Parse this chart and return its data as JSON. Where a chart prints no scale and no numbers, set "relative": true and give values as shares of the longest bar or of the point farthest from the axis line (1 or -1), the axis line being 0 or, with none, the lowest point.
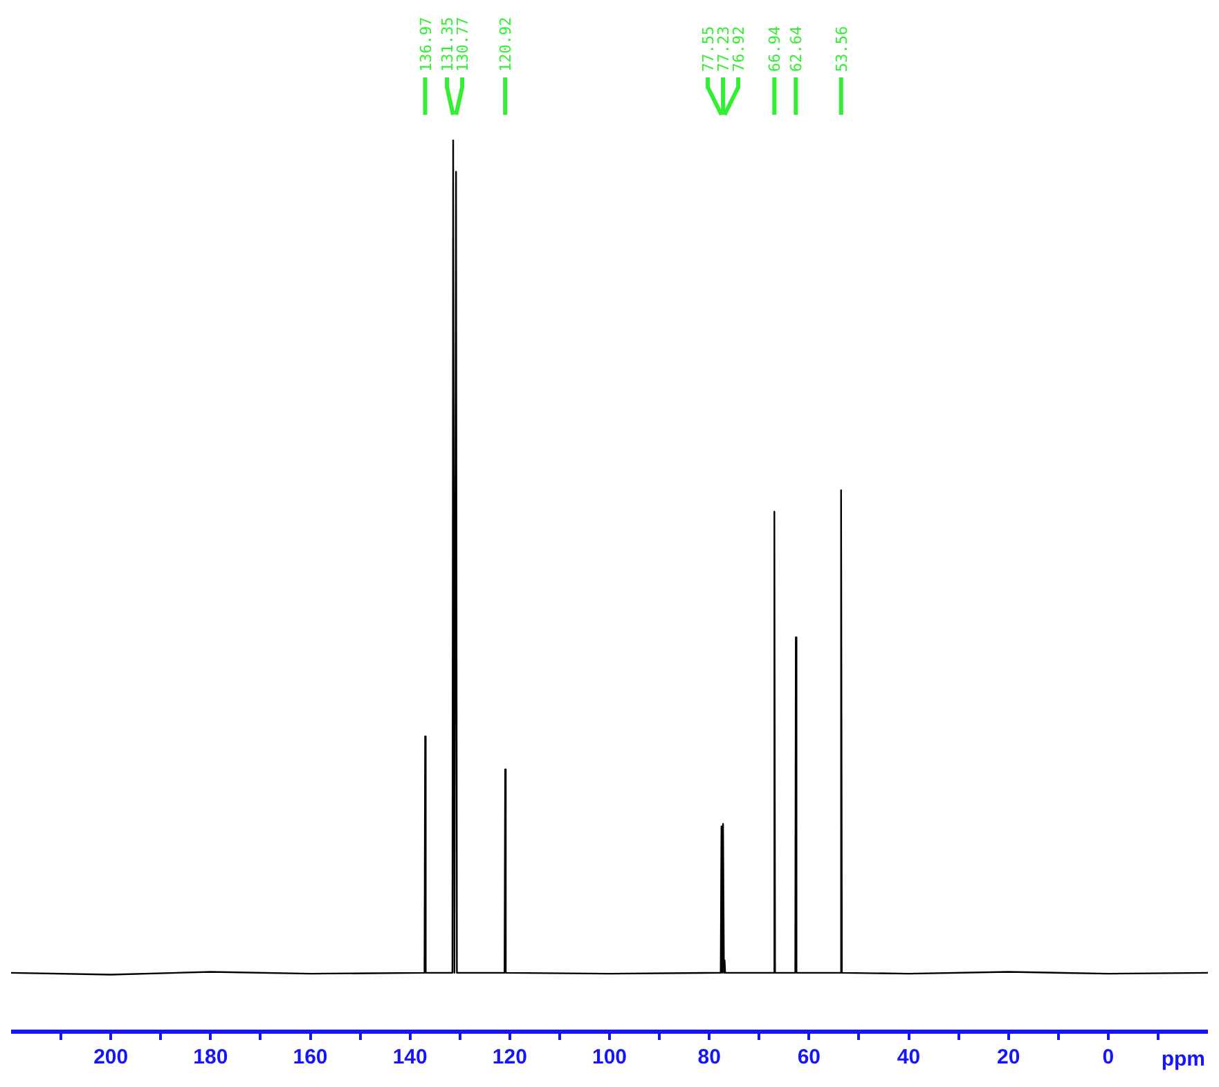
{
  "chart_data": {
    "type": "line",
    "relative": true,
    "xlabel": "ppm",
    "marker": "none",
    "line_style": "solid",
    "x": [
      220,
      200,
      180,
      160,
      137.1,
      136.97,
      136.85,
      131.5,
      131.35,
      131.1,
      130.77,
      130.6,
      121.05,
      120.92,
      120.8,
      100,
      77.7,
      77.55,
      77.4,
      77.23,
      77.05,
      76.92,
      76.8,
      67.05,
      66.94,
      66.8,
      62.75,
      62.64,
      62.5,
      53.7,
      53.56,
      53.4,
      40,
      20,
      0,
      -20
    ],
    "series": [
      {
        "color": "#000000",
        "values": [
          0.066,
          0.064,
          0.067,
          0.065,
          0.066,
          0.331,
          0.066,
          0.066,
          1,
          0.066,
          0.964,
          0.066,
          0.066,
          0.294,
          0.066,
          0.065,
          0.066,
          0.23,
          0.066,
          0.233,
          0.066,
          0.08,
          0.066,
          0.066,
          0.583,
          0.066,
          0.066,
          0.442,
          0.066,
          0.066,
          0.607,
          0.066,
          0.065,
          0.067,
          0.065,
          0.066
        ]
      }
    ],
    "xlim": [
      220,
      -20
    ],
    "xticks": [
      {
        "value": 210,
        "label": null
      },
      200,
      {
        "value": 190,
        "label": null
      },
      180,
      {
        "value": 170,
        "label": null
      },
      160,
      {
        "value": 150,
        "label": null
      },
      140,
      {
        "value": 130,
        "label": null
      },
      120,
      {
        "value": 110,
        "label": null
      },
      100,
      {
        "value": 90,
        "label": null
      },
      80,
      {
        "value": 70,
        "label": null
      },
      60,
      {
        "value": 50,
        "label": null
      },
      40,
      {
        "value": 30,
        "label": null
      },
      20,
      {
        "value": 10,
        "label": null
      },
      0,
      {
        "value": -10,
        "label": null
      }
    ],
    "annotations": [
      {
        "text": "136.97",
        "x": 136.97
      },
      {
        "text": "131.35",
        "x": 131.35
      },
      {
        "text": "130.77",
        "x": 130.77
      },
      {
        "text": "120.92",
        "x": 120.92
      },
      {
        "text": "77.55",
        "x": 77.55
      },
      {
        "text": "77.23",
        "x": 77.23
      },
      {
        "text": "76.92",
        "x": 76.92
      },
      {
        "text": "66.94",
        "x": 66.94
      },
      {
        "text": "62.64",
        "x": 62.64
      },
      {
        "text": "53.56",
        "x": 53.56
      }
    ]
  }
}
